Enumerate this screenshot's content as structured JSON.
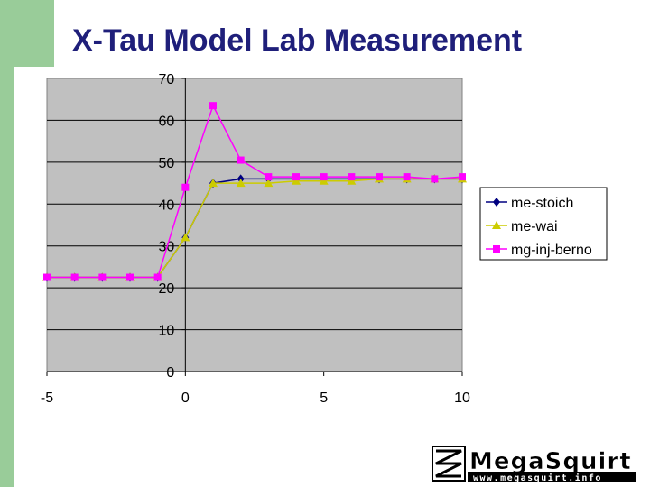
{
  "title": "X-Tau Model Lab Measurement",
  "logo": {
    "main": "MegaSquirt",
    "sub": "www.megasquirt.info"
  },
  "colors": {
    "plot_bg": "#c0c0c0",
    "accent_green": "#99cc99",
    "title": "#1f1f7a"
  },
  "chart_data": {
    "type": "line",
    "title": "",
    "xlabel": "",
    "ylabel": "",
    "xlim": [
      -5,
      10
    ],
    "ylim": [
      0,
      70
    ],
    "xticks": [
      "-5",
      "0",
      "5",
      "10"
    ],
    "yticks": [
      "0",
      "10",
      "20",
      "30",
      "40",
      "50",
      "60",
      "70"
    ],
    "grid": "horizontal",
    "legend": "right",
    "series": [
      {
        "name": "me-stoich",
        "color": "#000080",
        "marker": "diamond",
        "x": [
          -5,
          -4,
          -3,
          -2,
          -1,
          0,
          1,
          2,
          3,
          4,
          5,
          6,
          7,
          8,
          9,
          10
        ],
        "y": [
          22.5,
          22.5,
          22.5,
          22.5,
          22.5,
          32,
          45,
          46,
          46,
          46,
          46,
          46,
          46,
          46,
          46,
          46
        ]
      },
      {
        "name": "me-wai",
        "color": "#cccc00",
        "marker": "triangle",
        "x": [
          -5,
          -4,
          -3,
          -2,
          -1,
          0,
          1,
          2,
          3,
          4,
          5,
          6,
          7,
          8,
          9,
          10
        ],
        "y": [
          22.5,
          22.5,
          22.5,
          22.5,
          22.5,
          32,
          45,
          45,
          45,
          45.5,
          45.5,
          45.5,
          46,
          46,
          46,
          46
        ]
      },
      {
        "name": "mg-inj-berno",
        "color": "#ff00ff",
        "marker": "square",
        "x": [
          -5,
          -4,
          -3,
          -2,
          -1,
          0,
          1,
          2,
          3,
          4,
          5,
          6,
          7,
          8,
          9,
          10
        ],
        "y": [
          22.5,
          22.5,
          22.5,
          22.5,
          22.5,
          44,
          63.5,
          50.5,
          46.5,
          46.5,
          46.5,
          46.5,
          46.5,
          46.5,
          46,
          46.5
        ]
      }
    ]
  }
}
